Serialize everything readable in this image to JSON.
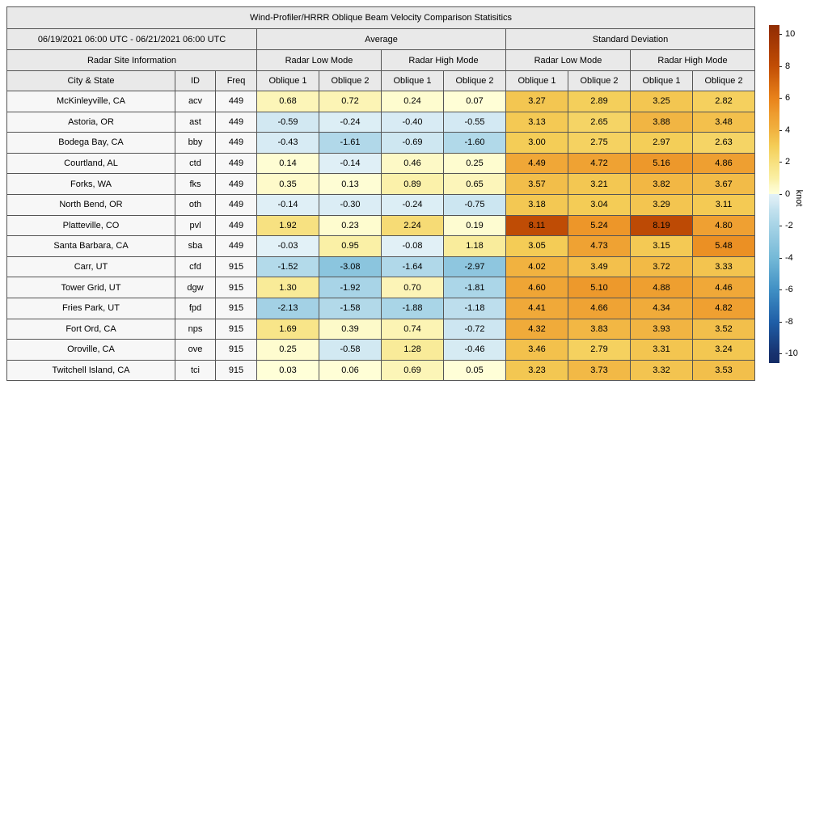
{
  "figure": {
    "title": "Wind-Profiler/HRRR Oblique Beam Velocity Comparison Statisitics",
    "date_range": "06/19/2021 06:00 UTC - 06/21/2021 06:00 UTC"
  },
  "labels": {
    "average": "Average",
    "std_dev": "Standard Deviation",
    "site_info": "Radar Site Information",
    "low_mode": "Radar Low Mode",
    "high_mode": "Radar High Mode",
    "city_state": "City & State",
    "id": "ID",
    "freq": "Freq",
    "oblique1": "Oblique 1",
    "oblique2": "Oblique 2"
  },
  "colorbar": {
    "label": "knot",
    "min": -10,
    "max": 10,
    "ticks": [
      10,
      8,
      6,
      4,
      2,
      0,
      -2,
      -4,
      -6,
      -8,
      -10
    ],
    "colormap_negative": [
      [
        -10.6,
        "#142c66"
      ],
      [
        -10,
        "#17316e"
      ],
      [
        -8,
        "#1f5ea7"
      ],
      [
        -6,
        "#3f8fc4"
      ],
      [
        -4,
        "#74b9d7"
      ],
      [
        -2,
        "#a6d3e6"
      ],
      [
        -1,
        "#c2e1ee"
      ],
      [
        -0.5,
        "#d5eaf3"
      ],
      [
        0,
        "#e3f1f7"
      ]
    ],
    "colormap_positive": [
      [
        0,
        "#ffffd9"
      ],
      [
        0.5,
        "#fdf8c4"
      ],
      [
        1,
        "#faefa3"
      ],
      [
        2,
        "#f7e07e"
      ],
      [
        3,
        "#f4cd57"
      ],
      [
        4,
        "#f1b240"
      ],
      [
        5,
        "#ee9c2e"
      ],
      [
        6,
        "#e8821a"
      ],
      [
        8,
        "#c14d05"
      ],
      [
        10,
        "#9b3203"
      ],
      [
        10.6,
        "#8f2d03"
      ]
    ]
  },
  "chart_data": {
    "type": "heatmap",
    "title": "Wind-Profiler/HRRR Oblique Beam Velocity Comparison Statisitics",
    "subtitle": "06/19/2021 06:00 UTC - 06/21/2021 06:00 UTC",
    "value_units": "knot",
    "color_range": [
      -10,
      10
    ],
    "column_groups": [
      "Average / Radar Low Mode",
      "Average / Radar High Mode",
      "Standard Deviation / Radar Low Mode",
      "Standard Deviation / Radar High Mode"
    ],
    "value_columns": [
      "Avg Low Oblique 1",
      "Avg Low Oblique 2",
      "Avg High Oblique 1",
      "Avg High Oblique 2",
      "Std Low Oblique 1",
      "Std Low Oblique 2",
      "Std High Oblique 1",
      "Std High Oblique 2"
    ],
    "rows": [
      {
        "city": "McKinleyville, CA",
        "id": "acv",
        "freq": "449",
        "values": [
          0.68,
          0.72,
          0.24,
          0.07,
          3.27,
          2.89,
          3.25,
          2.82
        ]
      },
      {
        "city": "Astoria, OR",
        "id": "ast",
        "freq": "449",
        "values": [
          -0.59,
          -0.24,
          -0.4,
          -0.55,
          3.13,
          2.65,
          3.88,
          3.48
        ]
      },
      {
        "city": "Bodega Bay, CA",
        "id": "bby",
        "freq": "449",
        "values": [
          -0.43,
          -1.61,
          -0.69,
          -1.6,
          3.0,
          2.75,
          2.97,
          2.63
        ]
      },
      {
        "city": "Courtland, AL",
        "id": "ctd",
        "freq": "449",
        "values": [
          0.14,
          -0.14,
          0.46,
          0.25,
          4.49,
          4.72,
          5.16,
          4.86
        ]
      },
      {
        "city": "Forks, WA",
        "id": "fks",
        "freq": "449",
        "values": [
          0.35,
          0.13,
          0.89,
          0.65,
          3.57,
          3.21,
          3.82,
          3.67
        ]
      },
      {
        "city": "North Bend, OR",
        "id": "oth",
        "freq": "449",
        "values": [
          -0.14,
          -0.3,
          -0.24,
          -0.75,
          3.18,
          3.04,
          3.29,
          3.11
        ]
      },
      {
        "city": "Platteville, CO",
        "id": "pvl",
        "freq": "449",
        "values": [
          1.92,
          0.23,
          2.24,
          0.19,
          8.11,
          5.24,
          8.19,
          4.8
        ]
      },
      {
        "city": "Santa Barbara, CA",
        "id": "sba",
        "freq": "449",
        "values": [
          -0.03,
          0.95,
          -0.08,
          1.18,
          3.05,
          4.73,
          3.15,
          5.48
        ]
      },
      {
        "city": "Carr, UT",
        "id": "cfd",
        "freq": "915",
        "values": [
          -1.52,
          -3.08,
          -1.64,
          -2.97,
          4.02,
          3.49,
          3.72,
          3.33
        ]
      },
      {
        "city": "Tower Grid, UT",
        "id": "dgw",
        "freq": "915",
        "values": [
          1.3,
          -1.92,
          0.7,
          -1.81,
          4.6,
          5.1,
          4.88,
          4.46
        ]
      },
      {
        "city": "Fries Park, UT",
        "id": "fpd",
        "freq": "915",
        "values": [
          -2.13,
          -1.58,
          -1.88,
          -1.18,
          4.41,
          4.66,
          4.34,
          4.82
        ]
      },
      {
        "city": "Fort Ord, CA",
        "id": "nps",
        "freq": "915",
        "values": [
          1.69,
          0.39,
          0.74,
          -0.72,
          4.32,
          3.83,
          3.93,
          3.52
        ]
      },
      {
        "city": "Oroville, CA",
        "id": "ove",
        "freq": "915",
        "values": [
          0.25,
          -0.58,
          1.28,
          -0.46,
          3.46,
          2.79,
          3.31,
          3.24
        ]
      },
      {
        "city": "Twitchell Island, CA",
        "id": "tci",
        "freq": "915",
        "values": [
          0.03,
          0.06,
          0.69,
          0.05,
          3.23,
          3.73,
          3.32,
          3.53
        ]
      }
    ]
  }
}
